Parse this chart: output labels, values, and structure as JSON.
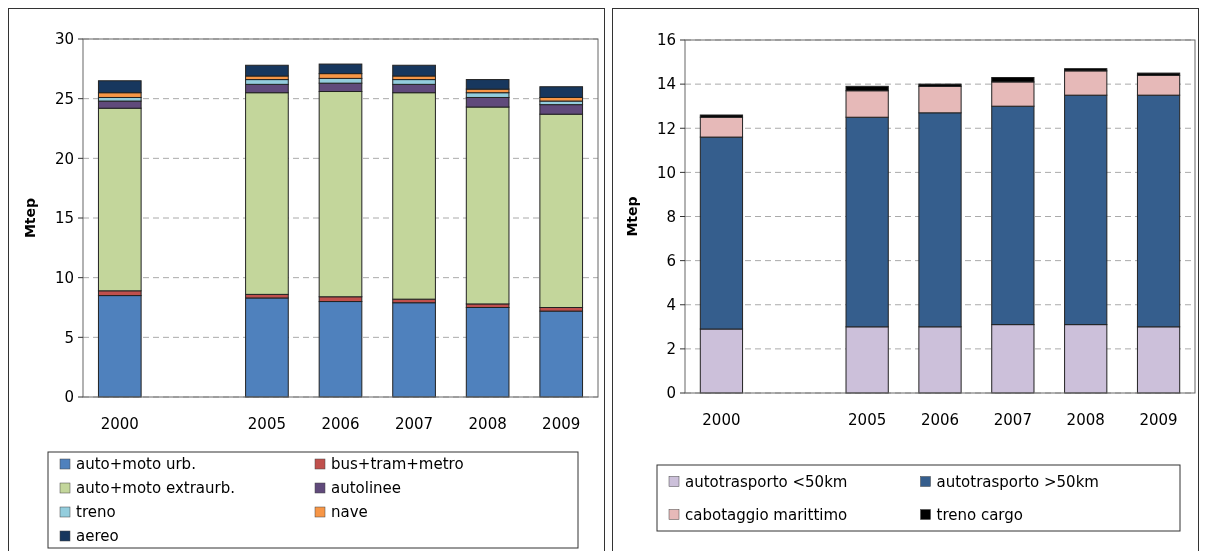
{
  "chart_data": [
    {
      "type": "bar",
      "stacked": true,
      "ylabel": "Mtep",
      "categories": [
        "2000",
        null,
        "2005",
        "2006",
        "2007",
        "2008",
        "2009"
      ],
      "ylim": [
        0,
        30
      ],
      "yticks": [
        0,
        5,
        10,
        15,
        20,
        25,
        30
      ],
      "grid": "y",
      "legend": "bottom",
      "series": [
        {
          "name": "auto+moto urb.",
          "color": "#4f81bd",
          "values": [
            8.5,
            null,
            8.3,
            8.0,
            7.9,
            7.5,
            7.2
          ]
        },
        {
          "name": "bus+tram+metro",
          "color": "#c0504d",
          "values": [
            0.4,
            null,
            0.3,
            0.4,
            0.3,
            0.3,
            0.3
          ]
        },
        {
          "name": "auto+moto extraurb.",
          "color": "#c3d69b",
          "values": [
            15.3,
            null,
            16.9,
            17.2,
            17.3,
            16.5,
            16.2
          ]
        },
        {
          "name": "autolinee",
          "color": "#604a7b",
          "values": [
            0.6,
            null,
            0.7,
            0.7,
            0.7,
            0.8,
            0.8
          ]
        },
        {
          "name": "treno",
          "color": "#93cddd",
          "values": [
            0.3,
            null,
            0.4,
            0.4,
            0.4,
            0.4,
            0.3
          ]
        },
        {
          "name": "nave",
          "color": "#f79646",
          "values": [
            0.4,
            null,
            0.3,
            0.4,
            0.3,
            0.3,
            0.3
          ]
        },
        {
          "name": "aereo",
          "color": "#17375e",
          "values": [
            1.0,
            null,
            0.9,
            0.8,
            0.9,
            0.8,
            0.9
          ]
        }
      ]
    },
    {
      "type": "bar",
      "stacked": true,
      "ylabel": "Mtep",
      "categories": [
        "2000",
        null,
        "2005",
        "2006",
        "2007",
        "2008",
        "2009"
      ],
      "ylim": [
        0,
        16
      ],
      "yticks": [
        0,
        2,
        4,
        6,
        8,
        10,
        12,
        14,
        16
      ],
      "grid": "y",
      "legend": "bottom",
      "series": [
        {
          "name": "autotrasporto <50km",
          "color": "#ccc0da",
          "values": [
            2.9,
            null,
            3.0,
            3.0,
            3.1,
            3.1,
            3.0
          ]
        },
        {
          "name": "autotrasporto >50km",
          "color": "#355e8d",
          "values": [
            8.7,
            null,
            9.5,
            9.7,
            9.9,
            10.4,
            10.5
          ]
        },
        {
          "name": "cabotaggio marittimo",
          "color": "#e6b9b8",
          "values": [
            0.9,
            null,
            1.2,
            1.2,
            1.1,
            1.1,
            0.9
          ]
        },
        {
          "name": "treno cargo",
          "color": "#000000",
          "values": [
            0.1,
            null,
            0.2,
            0.1,
            0.2,
            0.1,
            0.1
          ]
        }
      ]
    }
  ]
}
